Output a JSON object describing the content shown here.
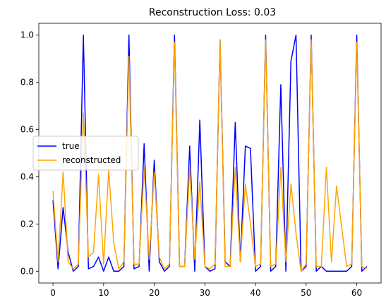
{
  "chart_data": {
    "type": "line",
    "title": "Reconstruction Loss: 0.03",
    "xlabel": "",
    "ylabel": "",
    "xlim": [
      -2.8,
      64.8
    ],
    "ylim": [
      -0.05,
      1.05
    ],
    "xticks": [
      0,
      10,
      20,
      30,
      40,
      50,
      60
    ],
    "yticks": [
      0.0,
      0.2,
      0.4,
      0.6,
      0.8,
      1.0
    ],
    "ytick_labels": [
      "0.0",
      "0.2",
      "0.4",
      "0.6",
      "0.8",
      "1.0"
    ],
    "grid": false,
    "legend_position": "center-left",
    "series": [
      {
        "name": "true",
        "color": "#0000ff",
        "x": [
          0,
          1,
          2,
          3,
          4,
          5,
          6,
          7,
          8,
          9,
          10,
          11,
          12,
          13,
          14,
          15,
          16,
          17,
          18,
          19,
          20,
          21,
          22,
          23,
          24,
          25,
          26,
          27,
          28,
          29,
          30,
          31,
          32,
          33,
          34,
          35,
          36,
          37,
          38,
          39,
          40,
          41,
          42,
          43,
          44,
          45,
          46,
          47,
          48,
          49,
          50,
          51,
          52,
          53,
          54,
          55,
          56,
          57,
          58,
          59,
          60,
          61,
          62
        ],
        "values": [
          0.3,
          0.01,
          0.27,
          0.08,
          0.0,
          0.02,
          1.0,
          0.01,
          0.02,
          0.06,
          0.0,
          0.06,
          0.0,
          0.0,
          0.02,
          1.0,
          0.01,
          0.02,
          0.54,
          0.0,
          0.47,
          0.04,
          0.0,
          0.02,
          1.0,
          0.02,
          0.02,
          0.53,
          0.0,
          0.64,
          0.02,
          0.0,
          0.01,
          0.98,
          0.04,
          0.02,
          0.63,
          0.04,
          0.53,
          0.52,
          0.0,
          0.02,
          1.0,
          0.0,
          0.02,
          0.79,
          0.0,
          0.89,
          1.0,
          0.0,
          0.02,
          1.0,
          0.0,
          0.02,
          0.0,
          0.0,
          0.0,
          0.0,
          0.0,
          0.02,
          1.0,
          0.0,
          0.02
        ]
      },
      {
        "name": "reconstructed",
        "color": "#ffa500",
        "x": [
          0,
          1,
          2,
          3,
          4,
          5,
          6,
          7,
          8,
          9,
          10,
          11,
          12,
          13,
          14,
          15,
          16,
          17,
          18,
          19,
          20,
          21,
          22,
          23,
          24,
          25,
          26,
          27,
          28,
          29,
          30,
          31,
          32,
          33,
          34,
          35,
          36,
          37,
          38,
          39,
          40,
          41,
          42,
          43,
          44,
          45,
          46,
          47,
          48,
          49,
          50,
          51,
          52,
          53,
          54,
          55,
          56,
          57,
          58,
          59,
          60,
          61,
          62
        ],
        "values": [
          0.34,
          0.04,
          0.42,
          0.04,
          0.01,
          0.03,
          0.67,
          0.06,
          0.08,
          0.41,
          0.03,
          0.43,
          0.12,
          0.01,
          0.04,
          0.91,
          0.03,
          0.03,
          0.44,
          0.05,
          0.42,
          0.06,
          0.01,
          0.03,
          0.97,
          0.02,
          0.02,
          0.44,
          0.05,
          0.38,
          0.02,
          0.01,
          0.03,
          0.98,
          0.02,
          0.02,
          0.44,
          0.04,
          0.37,
          0.2,
          0.02,
          0.03,
          0.98,
          0.02,
          0.03,
          0.44,
          0.04,
          0.37,
          0.16,
          0.0,
          0.03,
          0.98,
          0.02,
          0.02,
          0.44,
          0.04,
          0.36,
          0.19,
          0.02,
          0.03,
          0.97,
          0.02,
          0.01
        ]
      }
    ]
  }
}
